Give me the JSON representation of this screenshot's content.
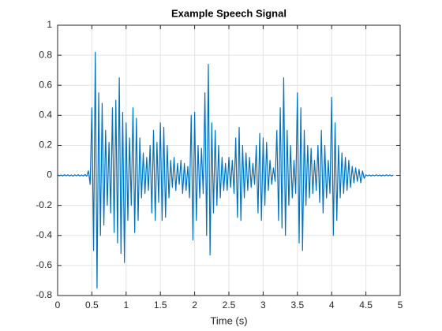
{
  "chart_data": {
    "type": "line",
    "title": "Example Speech Signal",
    "x_label": "Time (s)",
    "x": [
      0,
      0.025,
      0.05,
      0.075,
      0.1,
      0.125,
      0.15,
      0.175,
      0.2,
      0.225,
      0.25,
      0.275,
      0.3,
      0.325,
      0.35,
      0.375,
      0.4,
      0.425,
      0.45,
      0.475,
      0.5,
      0.525,
      0.55,
      0.575,
      0.6,
      0.625,
      0.65,
      0.675,
      0.7,
      0.725,
      0.75,
      0.775,
      0.8,
      0.825,
      0.85,
      0.875,
      0.9,
      0.925,
      0.95,
      0.975,
      1,
      1.025,
      1.05,
      1.075,
      1.1,
      1.125,
      1.15,
      1.175,
      1.2,
      1.225,
      1.25,
      1.275,
      1.3,
      1.325,
      1.35,
      1.375,
      1.4,
      1.425,
      1.45,
      1.475,
      1.5,
      1.525,
      1.55,
      1.575,
      1.6,
      1.625,
      1.65,
      1.675,
      1.7,
      1.725,
      1.75,
      1.775,
      1.8,
      1.825,
      1.85,
      1.875,
      1.9,
      1.925,
      1.95,
      1.975,
      2,
      2.025,
      2.05,
      2.075,
      2.1,
      2.125,
      2.15,
      2.175,
      2.2,
      2.225,
      2.25,
      2.275,
      2.3,
      2.325,
      2.35,
      2.375,
      2.4,
      2.425,
      2.45,
      2.475,
      2.5,
      2.525,
      2.55,
      2.575,
      2.6,
      2.625,
      2.65,
      2.675,
      2.7,
      2.725,
      2.75,
      2.775,
      2.8,
      2.825,
      2.85,
      2.875,
      2.9,
      2.925,
      2.95,
      2.975,
      3,
      3.025,
      3.05,
      3.075,
      3.1,
      3.125,
      3.15,
      3.175,
      3.2,
      3.225,
      3.25,
      3.275,
      3.3,
      3.325,
      3.35,
      3.375,
      3.4,
      3.425,
      3.45,
      3.475,
      3.5,
      3.525,
      3.55,
      3.575,
      3.6,
      3.625,
      3.65,
      3.675,
      3.7,
      3.725,
      3.75,
      3.775,
      3.8,
      3.825,
      3.85,
      3.875,
      3.9,
      3.925,
      3.95,
      3.975,
      4,
      4.025,
      4.05,
      4.075,
      4.1,
      4.125,
      4.15,
      4.175,
      4.2,
      4.225,
      4.25,
      4.275,
      4.3,
      4.325,
      4.35,
      4.375,
      4.4,
      4.425,
      4.45,
      4.475,
      4.5,
      4.525,
      4.55,
      4.575,
      4.6,
      4.625,
      4.65,
      4.675,
      4.7,
      4.725,
      4.75,
      4.775,
      4.8,
      4.825,
      4.85,
      4.875,
      4.9
    ],
    "values": [
      0.004,
      -0.003,
      0.003,
      -0.004,
      0.005,
      -0.003,
      0.004,
      -0.004,
      0.003,
      -0.005,
      0.004,
      -0.003,
      0.005,
      -0.004,
      0.003,
      -0.004,
      0.006,
      -0.005,
      0.03,
      -0.06,
      0.45,
      -0.5,
      0.82,
      -0.75,
      0.55,
      -0.4,
      0.48,
      -0.33,
      0.3,
      -0.2,
      0.22,
      -0.25,
      0.45,
      -0.38,
      0.5,
      -0.45,
      0.65,
      -0.52,
      0.42,
      -0.58,
      0.35,
      -0.3,
      0.25,
      -0.2,
      0.45,
      -0.38,
      0.38,
      -0.3,
      0.25,
      -0.15,
      0.15,
      -0.12,
      0.12,
      -0.1,
      0.2,
      -0.25,
      0.3,
      -0.3,
      0.22,
      -0.18,
      0.35,
      -0.3,
      0.32,
      -0.28,
      0.2,
      -0.15,
      0.1,
      -0.08,
      0.12,
      -0.1,
      0.08,
      -0.06,
      0.1,
      -0.12,
      0.08,
      -0.1,
      0.06,
      -0.15,
      0.4,
      -0.43,
      0.42,
      -0.3,
      0.2,
      -0.15,
      0.18,
      -0.12,
      0.55,
      -0.4,
      0.74,
      -0.53,
      0.35,
      -0.25,
      0.3,
      -0.2,
      0.2,
      -0.15,
      0.12,
      -0.1,
      0.08,
      -0.1,
      0.12,
      -0.08,
      0.1,
      -0.12,
      0.25,
      -0.28,
      0.32,
      -0.3,
      0.2,
      -0.15,
      0.15,
      -0.1,
      0.12,
      -0.08,
      0.08,
      -0.06,
      0.2,
      -0.25,
      0.28,
      -0.3,
      0.25,
      -0.2,
      0.22,
      -0.1,
      0.1,
      -0.06,
      0.05,
      -0.04,
      0.3,
      -0.3,
      0.45,
      -0.35,
      0.65,
      -0.4,
      0.3,
      -0.2,
      0.2,
      -0.15,
      0.1,
      -0.12,
      0.55,
      -0.45,
      0.45,
      -0.5,
      0.3,
      -0.2,
      0.2,
      -0.15,
      0.18,
      -0.12,
      0.1,
      -0.1,
      0.2,
      -0.18,
      0.3,
      -0.25,
      0.2,
      -0.15,
      0.1,
      -0.12,
      0.52,
      -0.4,
      0.35,
      -0.3,
      0.2,
      -0.15,
      0.15,
      -0.12,
      0.12,
      -0.1,
      0.1,
      -0.08,
      0.06,
      -0.05,
      0.05,
      -0.04,
      0.04,
      -0.05,
      0.03,
      -0.02,
      0.004,
      -0.003,
      0.003,
      -0.004,
      0.003,
      -0.003,
      0.004,
      -0.003,
      0.003,
      -0.004,
      0.003,
      -0.003,
      0.004,
      -0.003,
      0.003,
      -0.004,
      0.003
    ],
    "color": "#0072bd",
    "xlim": [
      0,
      5
    ],
    "xticks": [
      0,
      0.5,
      1,
      1.5,
      2,
      2.5,
      3,
      3.5,
      4,
      4.5,
      5
    ],
    "ylim": [
      -0.8,
      1
    ],
    "yticks": [
      -0.8,
      -0.6,
      -0.4,
      -0.2,
      0,
      0.2,
      0.4,
      0.6,
      0.8,
      1
    ],
    "grid": true
  }
}
